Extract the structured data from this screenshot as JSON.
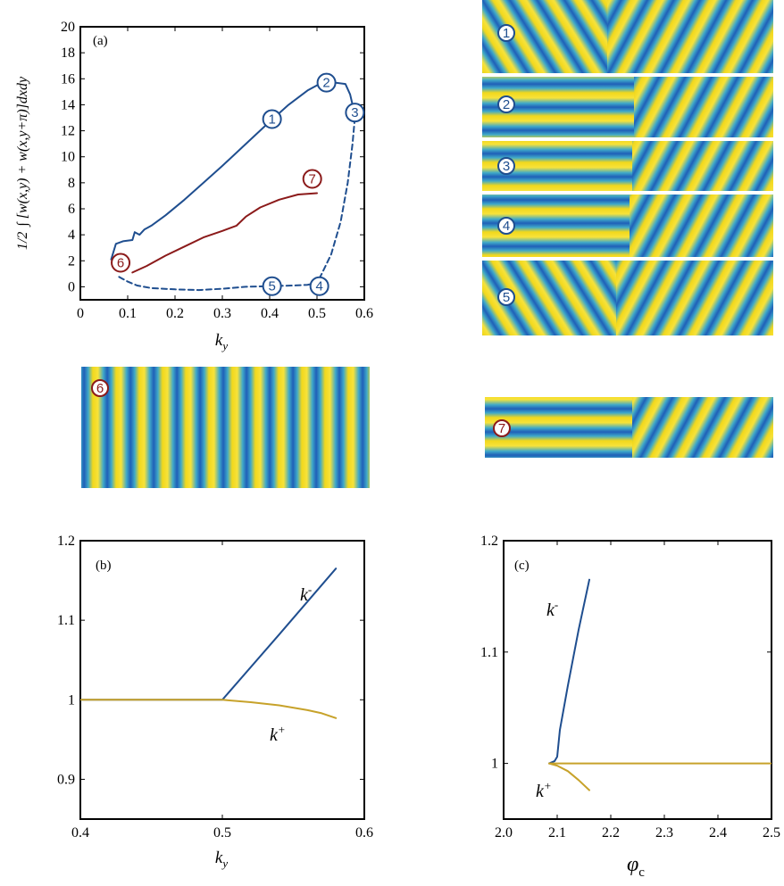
{
  "colors": {
    "blue": "#1f4e8f",
    "red": "#8b1a1a",
    "gold": "#c7a22a",
    "stripe_yellow": "#f2d81c",
    "stripe_blue": "#2573c3"
  },
  "panel_a": {
    "tag": "(a)",
    "ylabel_frac": "1/2",
    "ylabel": "∫ [w(x,y) + w(x,y+π)]dxdy",
    "xlabel": "k",
    "xlabel_sub": "y"
  },
  "panel_b": {
    "tag": "(b)",
    "xlabel": "k",
    "xlabel_sub": "y",
    "k_minus": "k",
    "k_minus_sup": "-",
    "k_plus": "k",
    "k_plus_sup": "+"
  },
  "panel_c": {
    "tag": "(c)",
    "xlabel": "φ",
    "xlabel_sub": "c",
    "k_minus": "k",
    "k_minus_sup": "-",
    "k_plus": "k",
    "k_plus_sup": "+"
  },
  "marker_labels": [
    "1",
    "2",
    "3",
    "4",
    "5",
    "6",
    "7"
  ],
  "chart_data": [
    {
      "type": "line",
      "panel": "(a)",
      "xlim": [
        0,
        0.6
      ],
      "ylim": [
        -1,
        20
      ],
      "xticks": [
        0,
        0.1,
        0.2,
        0.3,
        0.4,
        0.5,
        0.6
      ],
      "yticks": [
        0,
        2,
        4,
        6,
        8,
        10,
        12,
        14,
        16,
        18,
        20
      ],
      "series": [
        {
          "style": "solid",
          "color": "blue",
          "x": [
            0.065,
            0.075,
            0.09,
            0.11,
            0.115,
            0.125,
            0.135,
            0.15,
            0.18,
            0.22,
            0.26,
            0.3,
            0.35,
            0.4,
            0.44,
            0.48,
            0.5,
            0.52,
            0.54,
            0.56,
            0.57,
            0.575,
            0.58
          ],
          "y": [
            2.1,
            3.3,
            3.5,
            3.6,
            4.2,
            4.0,
            4.4,
            4.7,
            5.5,
            6.7,
            8.0,
            9.3,
            11.0,
            12.7,
            14.0,
            15.1,
            15.5,
            15.7,
            15.7,
            15.6,
            14.8,
            14.0,
            13.0
          ]
        },
        {
          "style": "dashed",
          "color": "blue",
          "x": [
            0.58,
            0.575,
            0.565,
            0.55,
            0.53,
            0.51,
            0.5,
            0.48,
            0.45,
            0.4,
            0.35,
            0.3,
            0.25,
            0.2,
            0.15,
            0.12,
            0.1,
            0.09,
            0.08
          ],
          "y": [
            13.0,
            11.0,
            8.0,
            5.0,
            2.5,
            1.0,
            0.3,
            0.15,
            0.1,
            0.05,
            0.0,
            -0.15,
            -0.25,
            -0.2,
            -0.1,
            0.1,
            0.4,
            0.6,
            0.8
          ]
        },
        {
          "style": "solid",
          "color": "red",
          "x": [
            0.11,
            0.14,
            0.18,
            0.22,
            0.26,
            0.3,
            0.33,
            0.35,
            0.38,
            0.42,
            0.46,
            0.5
          ],
          "y": [
            1.1,
            1.6,
            2.4,
            3.1,
            3.8,
            4.3,
            4.7,
            5.4,
            6.1,
            6.7,
            7.1,
            7.2
          ]
        }
      ],
      "markers": [
        {
          "label": "1",
          "x": 0.405,
          "y": 12.9,
          "color": "blue"
        },
        {
          "label": "2",
          "x": 0.52,
          "y": 15.7,
          "color": "blue"
        },
        {
          "label": "3",
          "x": 0.58,
          "y": 13.4,
          "color": "blue"
        },
        {
          "label": "4",
          "x": 0.505,
          "y": 0.05,
          "color": "blue"
        },
        {
          "label": "5",
          "x": 0.405,
          "y": 0.05,
          "color": "blue"
        },
        {
          "label": "6",
          "x": 0.085,
          "y": 1.85,
          "color": "red"
        },
        {
          "label": "7",
          "x": 0.49,
          "y": 8.3,
          "color": "red"
        }
      ]
    },
    {
      "type": "line",
      "panel": "(b)",
      "xlim": [
        0.4,
        0.6
      ],
      "ylim": [
        0.85,
        1.2
      ],
      "xticks": [
        0.4,
        0.5,
        0.6
      ],
      "yticks": [
        0.9,
        1.0,
        1.1,
        1.2
      ],
      "ytick_labels": [
        "0.9",
        "1",
        "1.1",
        "1.2"
      ],
      "series": [
        {
          "name": "k-",
          "color": "blue",
          "x": [
            0.4,
            0.45,
            0.5,
            0.54,
            0.58
          ],
          "y": [
            1.0,
            1.0,
            1.0,
            1.082,
            1.165
          ]
        },
        {
          "name": "k+",
          "color": "gold",
          "x": [
            0.4,
            0.45,
            0.5,
            0.52,
            0.54,
            0.56,
            0.57,
            0.58
          ],
          "y": [
            1.0,
            1.0,
            1.0,
            0.997,
            0.993,
            0.987,
            0.983,
            0.977
          ]
        }
      ]
    },
    {
      "type": "line",
      "panel": "(c)",
      "xlim": [
        2.0,
        2.5
      ],
      "ylim": [
        0.95,
        1.2
      ],
      "xticks": [
        2.0,
        2.1,
        2.2,
        2.3,
        2.4,
        2.5
      ],
      "yticks": [
        1.0,
        1.1,
        1.2
      ],
      "ytick_labels": [
        "1",
        "1.1",
        "1.2"
      ],
      "series": [
        {
          "name": "k-",
          "color": "blue",
          "x": [
            2.085,
            2.095,
            2.1,
            2.105,
            2.12,
            2.14,
            2.16
          ],
          "y": [
            1.0,
            1.002,
            1.006,
            1.03,
            1.07,
            1.12,
            1.165
          ]
        },
        {
          "name": "k+",
          "color": "gold",
          "x": [
            2.085,
            2.1,
            2.12,
            2.14,
            2.16
          ],
          "y": [
            1.0,
            0.998,
            0.993,
            0.985,
            0.976
          ]
        },
        {
          "name": "flat",
          "color": "gold",
          "x": [
            2.085,
            2.2,
            2.3,
            2.4,
            2.5
          ],
          "y": [
            1.0,
            1.0,
            1.0,
            1.0,
            1.0
          ]
        }
      ]
    }
  ]
}
